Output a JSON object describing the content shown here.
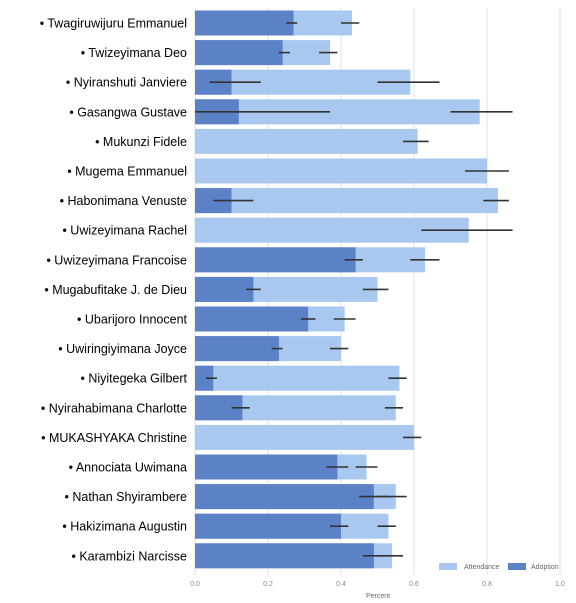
{
  "chart_data": {
    "type": "bar",
    "orientation": "horizontal",
    "xlabel": "Percent",
    "xlim": [
      0,
      1
    ],
    "xticks": [
      "0.0",
      "0.2",
      "0.4",
      "0.6",
      "0.8",
      "1.0"
    ],
    "grid": true,
    "legend_position": "bottom-right",
    "categories": [
      "Twagiruwijuru Emmanuel",
      "Twizeyimana Deo",
      "Nyiranshuti Janviere",
      "Gasangwa Gustave",
      "Mukunzi Fidele",
      "Mugema Emmanuel",
      "Habonimana Venuste",
      "Uwizeyimana Rachel",
      "Uwizeyimana Francoise",
      "Mugabufitake J. de Dieu",
      "Ubarijoro Innocent",
      "Uwiringiyimana Joyce",
      "Niyitegeka Gilbert",
      "Nyirahabimana Charlotte",
      "MUKASHYAKA Christine",
      "Annociata Uwimana",
      "Nathan Shyirambere",
      "Hakizimana Augustin",
      "Karambizi Narcisse"
    ],
    "series": [
      {
        "name": "Attendance",
        "color": "#a8c8f0",
        "values": [
          0.43,
          0.37,
          0.59,
          0.78,
          0.61,
          0.8,
          0.83,
          0.75,
          0.63,
          0.5,
          0.41,
          0.4,
          0.56,
          0.55,
          0.6,
          0.47,
          0.55,
          0.53,
          0.54
        ],
        "error_low": [
          0.4,
          0.34,
          0.5,
          0.7,
          0.57,
          0.74,
          0.79,
          0.62,
          0.59,
          0.46,
          0.38,
          0.37,
          0.53,
          0.52,
          0.57,
          0.44,
          0.5,
          0.5,
          0.5
        ],
        "error_high": [
          0.45,
          0.39,
          0.67,
          0.87,
          0.64,
          0.86,
          0.86,
          0.87,
          0.67,
          0.53,
          0.44,
          0.42,
          0.58,
          0.57,
          0.62,
          0.5,
          0.58,
          0.55,
          0.57
        ]
      },
      {
        "name": "Adoption",
        "color": "#5b82c6",
        "values": [
          0.27,
          0.24,
          0.1,
          0.12,
          0.0,
          0.0,
          0.1,
          0.0,
          0.44,
          0.16,
          0.31,
          0.23,
          0.05,
          0.13,
          0.0,
          0.39,
          0.49,
          0.4,
          0.49
        ],
        "error_low": [
          0.25,
          0.23,
          0.04,
          0.0,
          null,
          null,
          0.05,
          null,
          0.41,
          0.14,
          0.29,
          0.21,
          0.03,
          0.1,
          null,
          0.36,
          0.45,
          0.37,
          0.46
        ],
        "error_high": [
          0.28,
          0.26,
          0.18,
          0.37,
          null,
          null,
          0.16,
          null,
          0.46,
          0.18,
          0.33,
          0.24,
          0.06,
          0.15,
          null,
          0.42,
          0.53,
          0.42,
          0.52
        ]
      }
    ]
  },
  "colors": {
    "attendance": "#a8c8f0",
    "adoption": "#5b82c6",
    "error_bar": "#333333",
    "grid": "#e0e0e0"
  }
}
